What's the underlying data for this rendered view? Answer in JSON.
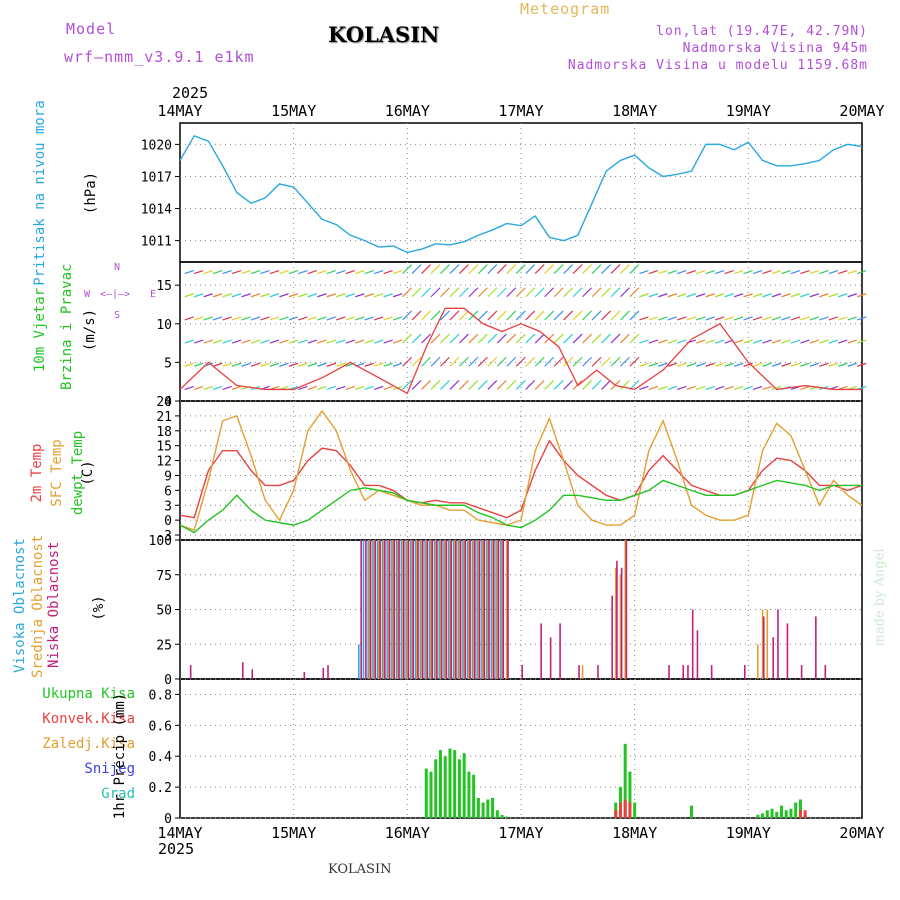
{
  "header": {
    "model_label": "Model",
    "model_name": "wrf–nmm_v3.9.1  e1km",
    "station": "KOLASIN",
    "meteogram": "Meteogram",
    "lonlat": "lon,lat (19.47E, 42.79N)",
    "altitude": "Nadmorska Visina 945m",
    "model_altitude": "Nadmorska Visina u modelu 1159.68m",
    "year_top": "2025",
    "year_bottom": "2025",
    "footer_station": "KOLASIN",
    "watermark": "made by Angel"
  },
  "colors": {
    "pressure": "#2aa8e0",
    "temp2m": "#e84040",
    "sfc": "#e3a030",
    "dewpt": "#22c422",
    "high_cloud": "#2aa8e0",
    "mid_cloud": "#e3a030",
    "low_cloud": "#c0207a",
    "total_precip": "#22c422",
    "conv_precip": "#e84040",
    "purple": "#b24fd6"
  },
  "x_ticks": [
    "14MAY",
    "15MAY",
    "16MAY",
    "17MAY",
    "18MAY",
    "19MAY",
    "20MAY"
  ],
  "panels": {
    "pressure": {
      "ylabel_name": "Pritisak na nivou mora",
      "ylabel_unit": "(hPa)",
      "yticks": [
        "1011",
        "1014",
        "1017",
        "1020"
      ]
    },
    "wind": {
      "ylabel_name1": "10m Vjetar",
      "ylabel_name2": "Brzina i Pravac",
      "ylabel_unit": "(m/s)",
      "compass": {
        "n": "N",
        "s": "S",
        "w": "W",
        "e": "E"
      },
      "yticks": [
        "0",
        "5",
        "10",
        "15"
      ]
    },
    "temperature": {
      "ylabel_t2m": "2m Temp",
      "ylabel_sfc": "SFC Temp",
      "ylabel_dew": "dewpt Temp",
      "ylabel_unit": "(C)",
      "yticks": [
        "-3",
        "0",
        "3",
        "6",
        "9",
        "12",
        "15",
        "18",
        "21",
        "24"
      ]
    },
    "cloud": {
      "ylabel_high": "Visoka Oblacnost",
      "ylabel_mid": "Srednja Oblacnost",
      "ylabel_low": "Niska Oblacnost",
      "ylabel_unit": "(%)",
      "yticks": [
        "0",
        "25",
        "50",
        "75",
        "100"
      ]
    },
    "precip": {
      "legend": [
        "Ukupna Kisa",
        "Konvek.Kisa",
        "Zaledj.Kisa",
        "Snijeg",
        "Grad"
      ],
      "legend_colors": [
        "#22c422",
        "#e84040",
        "#e3a030",
        "#4040e0",
        "#22c4b0"
      ],
      "ylabel_unit": "1hr Precip (mm)",
      "yticks": [
        "0",
        "0.2",
        "0.4",
        "0.6",
        "0.8"
      ]
    }
  },
  "chart_data": [
    {
      "type": "line",
      "title": "",
      "ylabel": "Pritisak na nivou mora (hPa)",
      "x_unit": "hours since 14MAY 00UTC",
      "ylim": [
        1009,
        1022
      ],
      "series": [
        {
          "name": "Pritisak na nivou mora",
          "x": [
            0,
            3,
            6,
            9,
            12,
            15,
            18,
            21,
            24,
            27,
            30,
            33,
            36,
            39,
            42,
            45,
            48,
            51,
            54,
            57,
            60,
            63,
            66,
            69,
            72,
            75,
            78,
            81,
            84,
            87,
            90,
            93,
            96,
            99,
            102,
            105,
            108,
            111,
            114,
            117,
            120,
            123,
            126,
            127,
            129,
            132,
            135,
            138,
            141,
            144
          ],
          "values": [
            1018.5,
            1020.8,
            1020.3,
            1018,
            1015.5,
            1014.5,
            1015,
            1016.3,
            1016,
            1014.5,
            1013,
            1012.5,
            1011.5,
            1011,
            1010.4,
            1010.5,
            1009.9,
            1010.2,
            1010.7,
            1010.6,
            1010.9,
            1011.5,
            1012,
            1012.6,
            1012.4,
            1013.3,
            1011.3,
            1011,
            1011.5,
            1014.5,
            1017.5,
            1018.5,
            1019,
            1017.8,
            1017,
            1017.2,
            1017.5,
            1020,
            1020,
            1019.5,
            1020.2,
            1018.5,
            1018,
            1018,
            1018,
            1018.2,
            1018.5,
            1019.5,
            1020,
            1019.8
          ]
        }
      ]
    },
    {
      "type": "line",
      "title": "",
      "ylabel": "10m Vjetar Brzina i Pravac (m/s)",
      "x_unit": "hours since 14MAY 00UTC",
      "ylim": [
        0,
        18
      ],
      "series": [
        {
          "name": "10m Vjetar",
          "x": [
            0,
            6,
            12,
            18,
            24,
            30,
            36,
            42,
            48,
            52,
            56,
            60,
            64,
            68,
            72,
            76,
            80,
            84,
            88,
            92,
            96,
            102,
            108,
            114,
            120,
            126,
            132,
            138,
            144
          ],
          "values": [
            1.5,
            5,
            2,
            1.5,
            1.5,
            3,
            5,
            3,
            1,
            7,
            12,
            12,
            10,
            9,
            10,
            9,
            7,
            2,
            4,
            2,
            1.5,
            4,
            8,
            10,
            5,
            1.5,
            2,
            1.5,
            1.5
          ]
        }
      ]
    },
    {
      "type": "line",
      "title": "",
      "ylabel": "(C)",
      "x_unit": "hours since 14MAY 00UTC",
      "ylim": [
        -4,
        24
      ],
      "series": [
        {
          "name": "2m Temp",
          "x": [
            0,
            3,
            6,
            9,
            12,
            15,
            18,
            21,
            24,
            27,
            30,
            33,
            36,
            39,
            42,
            45,
            48,
            51,
            54,
            57,
            60,
            63,
            66,
            69,
            72,
            75,
            78,
            81,
            84,
            87,
            90,
            93,
            96,
            99,
            102,
            105,
            108,
            111,
            114,
            117,
            120,
            123,
            126,
            129,
            132,
            135,
            138,
            141,
            144
          ],
          "values": [
            1,
            0.5,
            10,
            14,
            14,
            10,
            7,
            7,
            8,
            12,
            14.5,
            14,
            11,
            7,
            7,
            6,
            4,
            3.5,
            4,
            3.5,
            3.5,
            2.5,
            1.5,
            0.5,
            2,
            10,
            16,
            12,
            9,
            7,
            5,
            4,
            5,
            10,
            13,
            10,
            7,
            6,
            5,
            5,
            6,
            10,
            12.5,
            12,
            10,
            7,
            7,
            6,
            7
          ]
        },
        {
          "name": "SFC Temp",
          "x": [
            0,
            3,
            6,
            9,
            12,
            15,
            18,
            21,
            24,
            27,
            30,
            33,
            36,
            39,
            42,
            45,
            48,
            51,
            54,
            57,
            60,
            63,
            66,
            69,
            72,
            75,
            78,
            81,
            84,
            87,
            90,
            93,
            96,
            99,
            102,
            105,
            108,
            111,
            114,
            117,
            120,
            123,
            126,
            129,
            132,
            135,
            138,
            141,
            144
          ],
          "values": [
            -1,
            -2,
            8,
            20,
            21,
            13,
            4,
            0,
            6,
            18,
            22,
            18,
            10,
            4,
            6,
            5,
            4,
            3,
            3,
            2,
            2,
            0,
            -0.5,
            -1,
            0,
            14,
            20.5,
            12,
            3,
            0,
            -1,
            -1,
            1,
            14,
            20,
            12,
            3,
            1,
            0,
            0,
            1,
            14,
            19.5,
            17,
            10,
            3,
            8,
            5,
            3
          ]
        },
        {
          "name": "dewpt Temp",
          "x": [
            0,
            3,
            6,
            9,
            12,
            15,
            18,
            21,
            24,
            27,
            30,
            33,
            36,
            39,
            42,
            45,
            48,
            51,
            54,
            57,
            60,
            63,
            66,
            69,
            72,
            75,
            78,
            81,
            84,
            87,
            90,
            93,
            96,
            99,
            102,
            105,
            108,
            111,
            114,
            117,
            120,
            123,
            126,
            129,
            132,
            135,
            138,
            141,
            144
          ],
          "values": [
            -1,
            -2.5,
            0,
            2,
            5,
            2,
            0,
            -0.5,
            -1,
            0,
            2,
            4,
            6,
            6.5,
            6,
            5.5,
            4,
            3.5,
            3,
            3,
            3,
            1.5,
            0.5,
            -1,
            -1.5,
            0,
            2,
            5,
            5,
            4.5,
            4,
            4,
            5,
            6,
            8,
            7,
            6,
            5,
            5,
            5,
            6,
            7,
            8,
            7.5,
            7,
            6,
            7,
            7,
            7
          ]
        }
      ]
    },
    {
      "type": "bar",
      "title": "",
      "ylabel": "(%)",
      "x_unit": "hours since 14MAY 00UTC",
      "ylim": [
        0,
        100
      ],
      "series": [
        {
          "name": "Visoka Oblacnost",
          "x": [
            38,
            39,
            40,
            41,
            42,
            43,
            44,
            45,
            46,
            47,
            48,
            49,
            50,
            51,
            52,
            53,
            54,
            55,
            56,
            57,
            58,
            59,
            60,
            61,
            62,
            63,
            64,
            65,
            66,
            67,
            68
          ],
          "values": [
            25,
            100,
            100,
            100,
            100,
            100,
            100,
            100,
            100,
            100,
            100,
            100,
            100,
            100,
            100,
            100,
            100,
            100,
            100,
            100,
            100,
            100,
            100,
            100,
            100,
            100,
            100,
            100,
            100,
            100,
            100
          ]
        },
        {
          "name": "Srednja Oblacnost",
          "x": [
            40,
            41,
            42,
            43,
            44,
            45,
            46,
            47,
            48,
            49,
            50,
            51,
            52,
            53,
            54,
            55,
            56,
            57,
            58,
            59,
            60,
            61,
            62,
            63,
            64,
            65,
            66,
            67,
            68,
            69,
            85,
            92,
            93,
            94,
            122,
            123,
            124
          ],
          "values": [
            100,
            100,
            100,
            100,
            100,
            100,
            100,
            100,
            100,
            100,
            100,
            100,
            100,
            100,
            100,
            100,
            100,
            100,
            100,
            100,
            100,
            100,
            100,
            100,
            100,
            100,
            100,
            100,
            100,
            100,
            10,
            80,
            75,
            100,
            25,
            50,
            50
          ]
        },
        {
          "name": "Niska Oblacnost",
          "x": [
            2,
            13,
            15,
            26,
            30,
            31,
            38,
            39,
            40,
            41,
            42,
            43,
            44,
            45,
            46,
            47,
            48,
            49,
            50,
            51,
            52,
            53,
            54,
            55,
            56,
            57,
            58,
            59,
            60,
            61,
            62,
            63,
            64,
            65,
            66,
            67,
            68,
            69,
            72,
            76,
            78,
            80,
            84,
            88,
            91,
            92,
            93,
            94,
            103,
            106,
            107,
            108,
            109,
            112,
            119,
            123,
            125,
            126,
            128,
            131,
            134,
            136
          ],
          "values": [
            10,
            12,
            7,
            5,
            8,
            10,
            100,
            100,
            100,
            100,
            100,
            100,
            100,
            100,
            100,
            100,
            100,
            100,
            100,
            100,
            100,
            100,
            100,
            100,
            100,
            100,
            100,
            100,
            100,
            100,
            100,
            100,
            100,
            100,
            100,
            100,
            100,
            100,
            10,
            40,
            30,
            40,
            10,
            10,
            60,
            85,
            80,
            100,
            10,
            10,
            10,
            50,
            35,
            10,
            10,
            45,
            30,
            50,
            40,
            10,
            45,
            10
          ]
        }
      ]
    },
    {
      "type": "bar",
      "title": "",
      "ylabel": "1hr Precip (mm)",
      "x_unit": "hours since 14MAY 00UTC",
      "ylim": [
        0,
        0.9
      ],
      "series": [
        {
          "name": "Ukupna Kisa",
          "x": [
            52,
            53,
            54,
            55,
            56,
            57,
            58,
            59,
            60,
            61,
            62,
            63,
            64,
            65,
            66,
            67,
            68,
            69,
            70,
            71,
            72,
            73,
            74,
            75,
            76,
            77,
            78,
            79,
            80,
            81,
            82,
            83,
            84,
            85,
            86,
            87,
            88,
            89,
            90,
            91,
            92,
            93,
            94,
            95,
            96,
            97,
            98,
            99,
            100,
            101,
            102,
            103,
            104,
            105,
            106,
            107,
            108,
            109,
            110,
            111,
            112,
            113,
            114,
            115,
            116,
            117,
            118,
            119,
            120,
            121,
            122,
            123,
            124,
            125,
            126,
            127,
            128,
            129,
            130,
            131,
            132,
            133,
            134,
            135,
            136,
            137,
            138,
            139,
            140,
            141,
            142,
            143
          ],
          "values": [
            0.32,
            0.3,
            0.38,
            0.44,
            0.4,
            0.45,
            0.44,
            0.38,
            0.42,
            0.3,
            0.28,
            0.13,
            0.1,
            0.12,
            0.13,
            0.05,
            0.02,
            0.01,
            0,
            0,
            0,
            0,
            0,
            0,
            0,
            0,
            0,
            0,
            0,
            0,
            0,
            0,
            0,
            0,
            0,
            0,
            0,
            0,
            0,
            0,
            0.1,
            0.2,
            0.48,
            0.3,
            0.1,
            0,
            0,
            0,
            0,
            0,
            0,
            0,
            0,
            0,
            0,
            0,
            0.08,
            0,
            0,
            0,
            0,
            0,
            0,
            0,
            0,
            0,
            0,
            0,
            0,
            0,
            0.02,
            0.03,
            0.05,
            0.06,
            0.04,
            0.08,
            0.05,
            0.06,
            0.1,
            0.12,
            0.02,
            0,
            0,
            0,
            0,
            0,
            0,
            0,
            0,
            0,
            0,
            0
          ]
        },
        {
          "name": "Konvek.Kisa",
          "x": [
            92,
            93,
            94,
            95,
            131,
            132
          ],
          "values": [
            0.05,
            0.1,
            0.12,
            0.1,
            0.05,
            0.05
          ]
        }
      ]
    }
  ]
}
